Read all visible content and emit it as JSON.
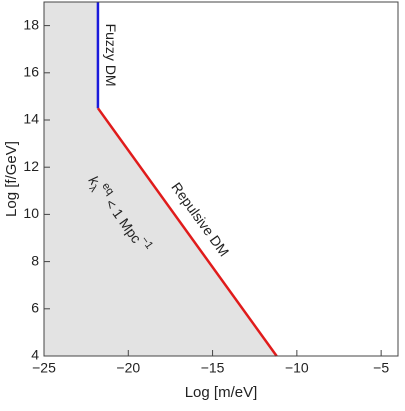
{
  "chart_data": {
    "type": "region",
    "xlabel": "Log [m/eV]",
    "ylabel": "Log [f/GeV]",
    "xlim": [
      -25,
      -4
    ],
    "ylim": [
      4,
      19
    ],
    "xticks": [
      {
        "value": -25,
        "label": "−25"
      },
      {
        "value": -20,
        "label": "−20"
      },
      {
        "value": -15,
        "label": "−15"
      },
      {
        "value": -10,
        "label": "−10"
      },
      {
        "value": -5,
        "label": "−5"
      }
    ],
    "yticks": [
      4,
      6,
      8,
      10,
      12,
      14,
      16,
      18
    ],
    "region": {
      "color": "#e3e3e3",
      "x": [
        -25,
        -25,
        -21.8,
        -21.8,
        -11.2
      ],
      "y": [
        4,
        19,
        19,
        14.5,
        4
      ]
    },
    "series": [
      {
        "name": "Fuzzy DM",
        "color": "#1a1adb",
        "x": [
          -21.8,
          -21.8
        ],
        "y": [
          14.5,
          19
        ]
      },
      {
        "name": "Repulsive DM",
        "color": "#e01b1b",
        "x": [
          -21.8,
          -11.2
        ],
        "y": [
          14.5,
          4
        ]
      }
    ],
    "annotation": {
      "k": "k",
      "sub": "λ",
      "sup": "eq",
      "mid": " < 1 Mpc",
      "exp": "−1"
    }
  }
}
